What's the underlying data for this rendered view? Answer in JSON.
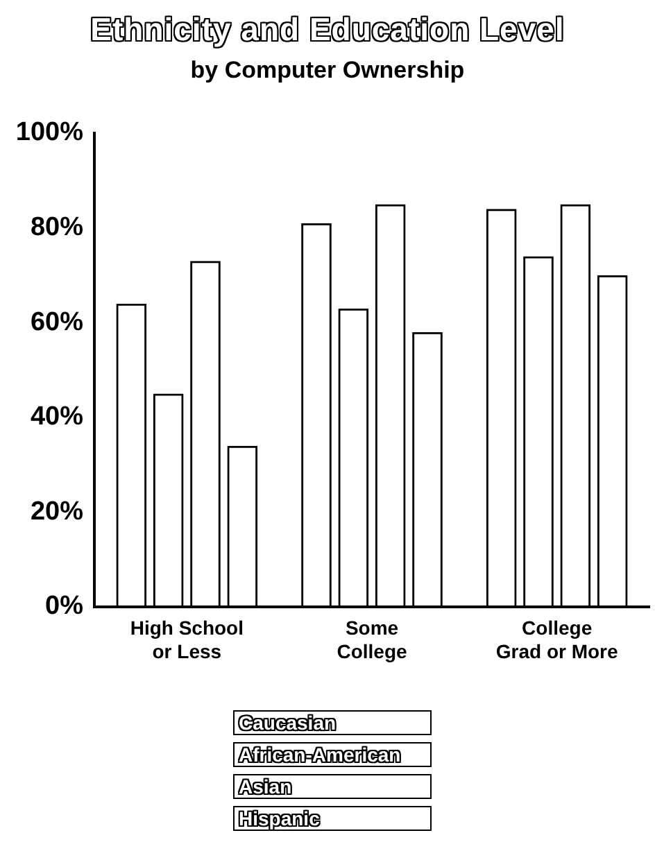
{
  "chart_data": {
    "type": "bar",
    "title": "Ethnicity and Education Level",
    "subtitle": "by Computer Ownership",
    "categories": [
      "High School\nor Less",
      "Some\nCollege",
      "College\nGrad or More"
    ],
    "series": [
      {
        "name": "Caucasian",
        "color": "#000000",
        "values": [
          64,
          81,
          84
        ]
      },
      {
        "name": "African-American",
        "color": "#000000",
        "values": [
          45,
          63,
          74
        ]
      },
      {
        "name": "Asian",
        "color": "#000000",
        "values": [
          73,
          85,
          85
        ]
      },
      {
        "name": "Hispanic",
        "color": "#000000",
        "values": [
          34,
          58,
          70
        ]
      }
    ],
    "ylim": [
      0,
      100
    ],
    "yticks": [
      {
        "value": 0,
        "label": "0%"
      },
      {
        "value": 20,
        "label": "20%"
      },
      {
        "value": 40,
        "label": "40%"
      },
      {
        "value": 60,
        "label": "60%"
      },
      {
        "value": 80,
        "label": "80%"
      },
      {
        "value": 100,
        "label": "100%"
      }
    ],
    "grid": false,
    "legend": "bottom"
  }
}
